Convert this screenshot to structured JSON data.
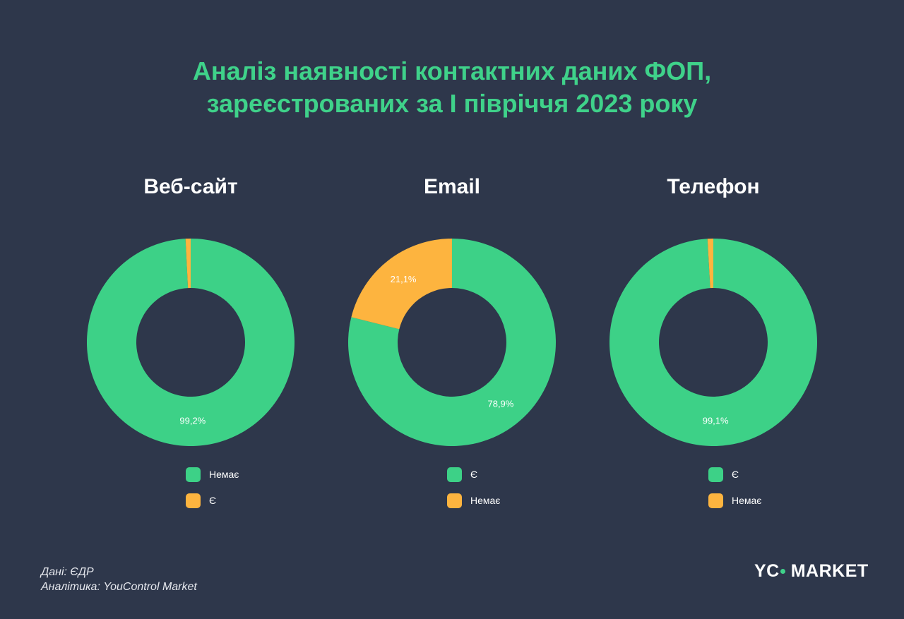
{
  "title_lines": [
    "Аналіз наявності контактних даних ФОП,",
    "зареєстрованих за І півріччя 2023 року"
  ],
  "colors": {
    "green": "#3dd187",
    "orange": "#fdb43f",
    "background": "#2e374b"
  },
  "chart_data": [
    {
      "type": "pie",
      "title": "Веб-сайт",
      "series": [
        {
          "name": "Немає",
          "value": 99.2,
          "label": "99,2%",
          "color": "#3dd187"
        },
        {
          "name": "Є",
          "value": 0.8,
          "label": "",
          "color": "#fdb43f"
        }
      ],
      "legend_order": [
        0,
        1
      ]
    },
    {
      "type": "pie",
      "title": "Email",
      "series": [
        {
          "name": "Є",
          "value": 78.9,
          "label": "78,9%",
          "color": "#3dd187"
        },
        {
          "name": "Немає",
          "value": 21.1,
          "label": "21,1%",
          "color": "#fdb43f"
        }
      ],
      "legend_order": [
        0,
        1
      ]
    },
    {
      "type": "pie",
      "title": "Телефон",
      "series": [
        {
          "name": "Є",
          "value": 99.1,
          "label": "99,1%",
          "color": "#3dd187"
        },
        {
          "name": "Немає",
          "value": 0.9,
          "label": "",
          "color": "#fdb43f"
        }
      ],
      "legend_order": [
        0,
        1
      ]
    }
  ],
  "footer": {
    "source": "Дані: ЄДР",
    "analytics": "Аналітика: YouControl Market"
  },
  "logo": {
    "left": "YC",
    "right": "MARKET"
  }
}
